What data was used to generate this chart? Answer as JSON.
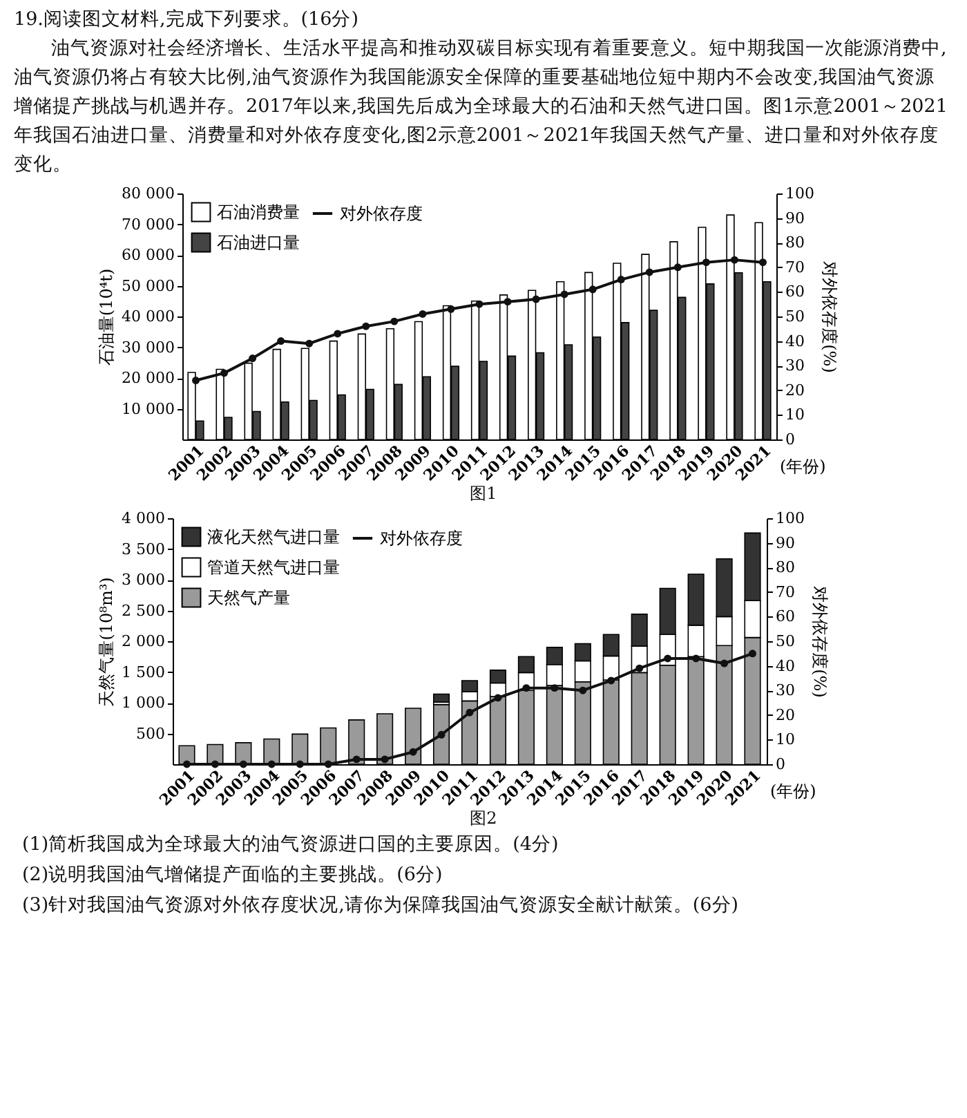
{
  "chart_data": [
    {
      "type": "bar",
      "title": "19.阅读图文材料,完成下列要求。(16分)",
      "subtitle": "油气资源对社会经济增长、生活水平提高和推动双碳目标实现有着重要意义。短中期我国一次能源消费中,油气资源仍将占有较大比例,油气资源作为我国能源安全保障的重要基础地位短中期内不会改变,我国油气资源增储提产挑战与机遇并存。2017年以来,我国先后成为全球最大的石油和天然气进口国。图1示意2001～2021年我国石油进口量、消费量和对外依存度变化,图2示意2001～2021年我国天然气产量、进口量和对外依存度变化。",
      "xlabel": "(年份)",
      "ylabel": "石油量(10⁴t)",
      "y2label": "对外依存度(%)",
      "annotations": [
        "图1"
      ],
      "categories": [
        "2001",
        "2002",
        "2003",
        "2004",
        "2005",
        "2006",
        "2007",
        "2008",
        "2009",
        "2010",
        "2011",
        "2012",
        "2013",
        "2014",
        "2015",
        "2016",
        "2017",
        "2018",
        "2019",
        "2020",
        "2021"
      ],
      "series": [
        {
          "name": "石油消费量",
          "color": "#ffffff",
          "values": [
            21800,
            22800,
            24800,
            29300,
            29600,
            32000,
            34300,
            36000,
            38300,
            43500,
            45000,
            47000,
            48500,
            51300,
            54300,
            57300,
            60200,
            64300,
            69000,
            73000,
            70500
          ]
        },
        {
          "name": "石油进口量",
          "color": "#444444",
          "values": [
            6000,
            7200,
            9100,
            12200,
            12700,
            14500,
            16300,
            17900,
            20400,
            23800,
            25400,
            27100,
            28200,
            30800,
            33300,
            38000,
            42000,
            46200,
            50600,
            54200,
            51300
          ]
        },
        {
          "name": "对外依存度",
          "type": "line",
          "axis": "y2",
          "color": "#111111",
          "values": [
            24,
            27,
            33,
            40,
            39,
            43,
            46,
            48,
            51,
            53,
            55,
            56,
            57,
            59,
            61,
            65,
            68,
            70,
            72,
            73,
            72
          ]
        }
      ],
      "ylim": [
        0,
        80000
      ],
      "yticks": [
        {
          "value": 10000,
          "label": "10 000"
        },
        {
          "value": 20000,
          "label": "20 000"
        },
        {
          "value": 30000,
          "label": "30 000"
        },
        {
          "value": 40000,
          "label": "40 000"
        },
        {
          "value": 50000,
          "label": "50 000"
        },
        {
          "value": 60000,
          "label": "60 000"
        },
        {
          "value": 70000,
          "label": "70 000"
        },
        {
          "value": 80000,
          "label": "80 000"
        }
      ],
      "y2lim": [
        0,
        100
      ],
      "y2ticks": [
        0,
        10,
        20,
        30,
        40,
        50,
        60,
        70,
        80,
        90,
        100
      ],
      "legend": "top left",
      "marker": "circle"
    },
    {
      "type": "bar",
      "stacked": true,
      "xlabel": "(年份)",
      "ylabel": "天然气量(10⁸m³)",
      "y2label": "对外依存度(%)",
      "annotations": [
        "图2",
        "(1)简析我国成为全球最大的油气资源进口国的主要原因。(4分)",
        "(2)说明我国油气增储提产面临的主要挑战。(6分)",
        "(3)针对我国油气资源对外依存度状况,请你为保障我国油气资源安全献计献策。(6分)"
      ],
      "categories": [
        "2001",
        "2002",
        "2003",
        "2004",
        "2005",
        "2006",
        "2007",
        "2008",
        "2009",
        "2010",
        "2011",
        "2012",
        "2013",
        "2014",
        "2015",
        "2016",
        "2017",
        "2018",
        "2019",
        "2020",
        "2021"
      ],
      "series": [
        {
          "name": "天然气产量",
          "color": "#9a9a9a",
          "values": [
            300,
            320,
            350,
            410,
            490,
            590,
            720,
            820,
            910,
            970,
            1030,
            1100,
            1200,
            1280,
            1340,
            1370,
            1490,
            1610,
            1750,
            1930,
            2060
          ]
        },
        {
          "name": "管道天然气进口量",
          "color": "#ffffff",
          "values": [
            null,
            null,
            null,
            null,
            null,
            null,
            null,
            null,
            null,
            40,
            150,
            220,
            290,
            340,
            340,
            390,
            430,
            500,
            510,
            470,
            600
          ]
        },
        {
          "name": "液化天然气进口量",
          "color": "#333333",
          "values": [
            null,
            null,
            null,
            null,
            null,
            null,
            null,
            null,
            null,
            130,
            180,
            210,
            260,
            280,
            280,
            350,
            520,
            750,
            830,
            940,
            1100
          ]
        },
        {
          "name": "对外依存度",
          "type": "line",
          "axis": "y2",
          "color": "#111111",
          "values": [
            0,
            0,
            0,
            0,
            0,
            0,
            2,
            2,
            5,
            12,
            21,
            27,
            31,
            31,
            30,
            34,
            39,
            43,
            43,
            41,
            45
          ]
        }
      ],
      "ylim": [
        0,
        4000
      ],
      "yticks": [
        500,
        {
          "value": 1000,
          "label": "1 000"
        },
        {
          "value": 1500,
          "label": "1 500"
        },
        {
          "value": 2000,
          "label": "2 000"
        },
        {
          "value": 2500,
          "label": "2 500"
        },
        {
          "value": 3000,
          "label": "3 000"
        },
        {
          "value": 3500,
          "label": "3 500"
        },
        {
          "value": 4000,
          "label": "4 000"
        }
      ],
      "y2lim": [
        0,
        100
      ],
      "y2ticks": [
        0,
        10,
        20,
        30,
        40,
        50,
        60,
        70,
        80,
        90,
        100
      ],
      "legend": "top left",
      "marker": "circle"
    }
  ]
}
